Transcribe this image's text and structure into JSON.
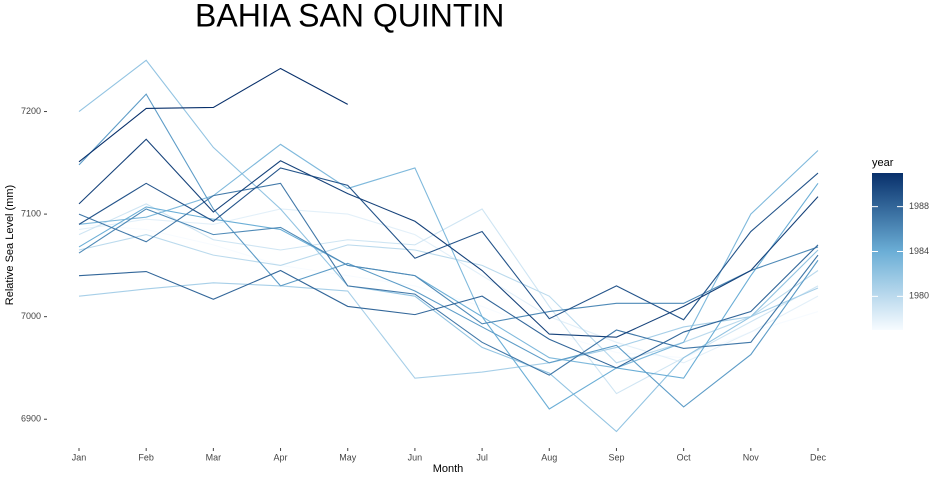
{
  "chart_data": {
    "type": "line",
    "title": "BAHIA SAN QUINTIN",
    "x_label": "Month",
    "y_label": "Relative Sea Level (mm)",
    "categories": [
      "Jan",
      "Feb",
      "Mar",
      "Apr",
      "May",
      "Jun",
      "Jul",
      "Aug",
      "Sep",
      "Oct",
      "Nov",
      "Dec"
    ],
    "ylim": [
      6870,
      7260
    ],
    "yticks": [
      6900,
      7000,
      7100,
      7200
    ],
    "colorbar": {
      "title": "year",
      "lim": [
        1977,
        1991
      ],
      "ticks": [
        1980,
        1984,
        1988
      ],
      "colors": [
        "#f7fbff",
        "#6baed6",
        "#08306b"
      ]
    },
    "series": [
      {
        "year": 1977,
        "values": [
          7090,
          7085,
          7070,
          7050,
          7040,
          7030,
          7010,
          6985,
          6965,
          6960,
          6985,
          7005
        ]
      },
      {
        "year": 1978,
        "values": [
          7085,
          7095,
          7090,
          7105,
          7100,
          7080,
          7040,
          7000,
          6975,
          6955,
          6985,
          7020
        ]
      },
      {
        "year": 1979,
        "values": [
          7080,
          7110,
          7075,
          7065,
          7075,
          7070,
          7105,
          7010,
          6925,
          6960,
          6995,
          7030
        ]
      },
      {
        "year": 1980,
        "values": [
          7065,
          7080,
          7060,
          7050,
          7070,
          7065,
          7050,
          7020,
          6955,
          6975,
          7000,
          7045
        ]
      },
      {
        "year": 1981,
        "values": [
          7020,
          7027,
          7033,
          7030,
          7025,
          6940,
          6946,
          6955,
          6970,
          6990,
          7000,
          7028
        ]
      },
      {
        "year": 1982,
        "values": [
          7200,
          7250,
          7165,
          7105,
          7030,
          7020,
          6970,
          6945,
          6888,
          6960,
          7000,
          7065
        ]
      },
      {
        "year": 1983,
        "values": [
          7090,
          7097,
          7118,
          7168,
          7125,
          7145,
          7000,
          6960,
          6950,
          6975,
          7100,
          7162
        ]
      },
      {
        "year": 1984,
        "values": [
          7068,
          7107,
          7095,
          7085,
          7050,
          7040,
          7000,
          6910,
          6950,
          6940,
          7040,
          7130
        ]
      },
      {
        "year": 1985,
        "values": [
          7148,
          7217,
          7105,
          7030,
          7052,
          7025,
          6990,
          6955,
          6972,
          6912,
          6963,
          7055
        ]
      },
      {
        "year": 1986,
        "values": [
          7062,
          7105,
          7080,
          7087,
          7050,
          7040,
          6993,
          7005,
          7013,
          7013,
          7045,
          7068
        ]
      },
      {
        "year": 1987,
        "values": [
          7100,
          7073,
          7118,
          7130,
          7030,
          7022,
          6975,
          6943,
          6987,
          6969,
          6975,
          7060
        ]
      },
      {
        "year": 1988,
        "values": [
          7040,
          7044,
          7017,
          7045,
          7010,
          7002,
          7020,
          6978,
          6950,
          6985,
          7005,
          7070
        ]
      },
      {
        "year": 1989,
        "values": [
          7090,
          7130,
          7093,
          7145,
          7128,
          7057,
          7083,
          6998,
          7030,
          6997,
          7083,
          7140
        ]
      },
      {
        "year": 1990,
        "values": [
          7110,
          7173,
          7102,
          7152,
          7120,
          7093,
          7045,
          6983,
          6980,
          7010,
          7045,
          7117
        ]
      },
      {
        "year": 1991,
        "values": [
          7151,
          7203,
          7204,
          7242,
          7207,
          null,
          null,
          null,
          null,
          null,
          null,
          null
        ]
      }
    ]
  }
}
